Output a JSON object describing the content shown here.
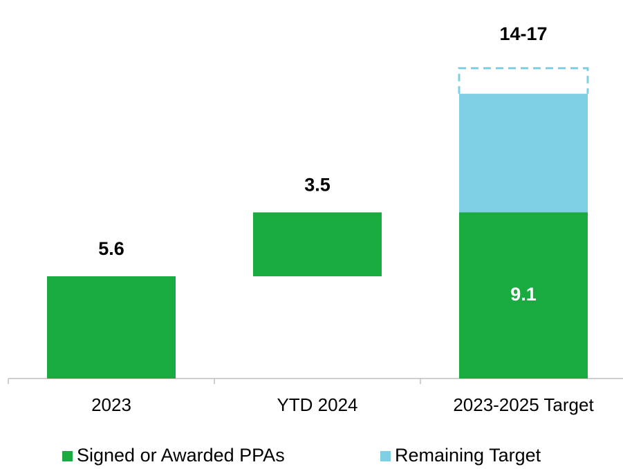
{
  "chart_data": {
    "type": "waterfall",
    "categories": [
      "2023",
      "YTD 2024",
      "2023-2025 Target"
    ],
    "measure": [
      "relative",
      "relative",
      "total"
    ],
    "series": [
      {
        "name": "Signed or Awarded PPAs",
        "color": "#1aab40",
        "values": [
          5.6,
          3.5,
          9.1
        ]
      },
      {
        "name": "Remaining Target",
        "color": "#7ecfe3",
        "values": [
          null,
          null,
          6.5
        ]
      }
    ],
    "target_label": "14-17",
    "target_top": 17
  }
}
